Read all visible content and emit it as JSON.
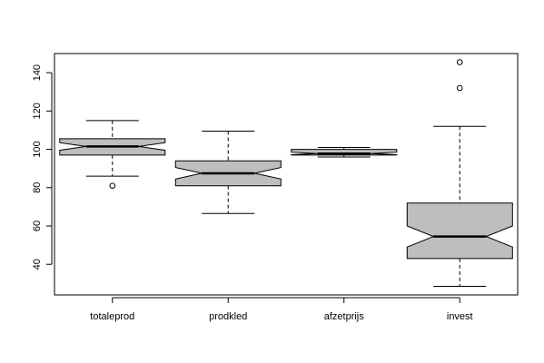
{
  "chart_data": {
    "type": "boxplot",
    "notched": true,
    "box_fill": "#bebebe",
    "stroke_color": "#000000",
    "title": "",
    "xlabel": "",
    "ylabel": "",
    "ylim": [
      24,
      150
    ],
    "yticks": [
      40,
      60,
      80,
      100,
      120,
      140
    ],
    "ytick_labels": [
      "40",
      "60",
      "80",
      "100",
      "120",
      "140"
    ],
    "categories": [
      "totaleprod",
      "prodkled",
      "afzetprijs",
      "invest"
    ],
    "boxes": [
      {
        "name": "totaleprod",
        "whisker_low": 86,
        "q1": 97,
        "median": 101.5,
        "q3": 105.5,
        "whisker_high": 115,
        "notch_low": 99.5,
        "notch_high": 103.5,
        "outliers": [
          81
        ]
      },
      {
        "name": "prodkled",
        "whisker_low": 66.5,
        "q1": 81,
        "median": 87.5,
        "q3": 94,
        "whisker_high": 109.5,
        "notch_low": 84.5,
        "notch_high": 90.5,
        "outliers": []
      },
      {
        "name": "afzetprijs",
        "whisker_low": 96,
        "q1": 97,
        "median": 97.8,
        "q3": 100,
        "whisker_high": 101,
        "notch_low": 97.2,
        "notch_high": 98.5,
        "outliers": []
      },
      {
        "name": "invest",
        "whisker_low": 28.5,
        "q1": 43,
        "median": 54.5,
        "q3": 72,
        "whisker_high": 112,
        "notch_low": 49,
        "notch_high": 60,
        "outliers": [
          132,
          145.5
        ]
      }
    ]
  }
}
